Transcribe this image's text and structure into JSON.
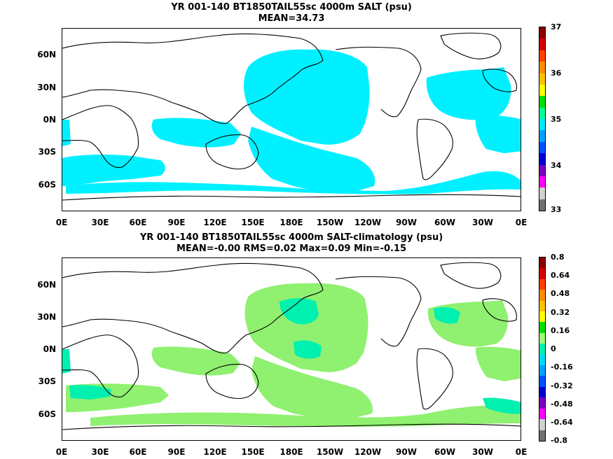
{
  "panels": [
    {
      "title_line1": "YR 001-140 BT1850TAIL55sc 4000m SALT (psu)",
      "title_line2": "MEAN=34.73",
      "colorbar_labels": [
        "37",
        "36",
        "35",
        "34",
        "33"
      ],
      "colorbar_colors": [
        "#8b0000",
        "#d40000",
        "#ff4000",
        "#ff8c00",
        "#ffc000",
        "#ffff00",
        "#00e000",
        "#00ff90",
        "#00e8ff",
        "#00a0ff",
        "#0050ff",
        "#0000d0",
        "#8000c0",
        "#ff00ff",
        "#d0d0d0",
        "#707070"
      ],
      "field_color": "#00f0ff"
    },
    {
      "title_line1": "YR 001-140 BT1850TAIL55sc 4000m SALT-climatology (psu)",
      "title_line2": "MEAN=-0.00   RMS=0.02   Max=0.09   Min=-0.15",
      "colorbar_labels": [
        "0.8",
        "0.64",
        "0.48",
        "0.32",
        "0.16",
        "0",
        "-0.16",
        "-0.32",
        "-0.48",
        "-0.64",
        "-0.8"
      ],
      "colorbar_colors": [
        "#8b0000",
        "#d40000",
        "#ff4000",
        "#ff8c00",
        "#ffc000",
        "#ffff00",
        "#00e000",
        "#98ff70",
        "#00f0b0",
        "#00d8ff",
        "#00a0ff",
        "#0050ff",
        "#0000d0",
        "#8000c0",
        "#ff00ff",
        "#d0d0d0",
        "#707070"
      ],
      "field_color": "#90f070",
      "field_color2": "#00f0b0"
    }
  ],
  "x_axis_labels": [
    "0E",
    "30E",
    "60E",
    "90E",
    "120E",
    "150E",
    "180E",
    "150W",
    "120W",
    "90W",
    "60W",
    "30W",
    "0E"
  ],
  "y_axis_labels": [
    "60N",
    "30N",
    "0N",
    "30S",
    "60S"
  ]
}
